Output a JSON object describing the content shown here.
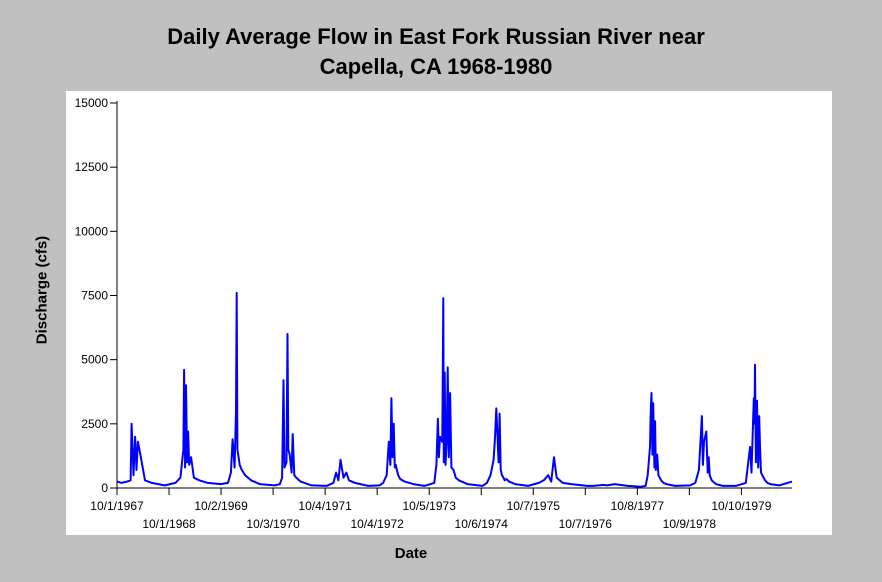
{
  "chart_data": {
    "type": "line",
    "title": [
      "Daily Average Flow in East Fork Russian River near",
      "Capella, CA 1968-1980"
    ],
    "xlabel": "Date",
    "ylabel": "Discharge (cfs)",
    "ylim": [
      0,
      15000
    ],
    "xlim": [
      "1967-10-01",
      "1980-09-30"
    ],
    "yticks": [
      0,
      2500,
      5000,
      7500,
      10000,
      12500,
      15000
    ],
    "ytick_labels": [
      "0",
      "2500",
      "5000",
      "7500",
      "10000",
      "12500",
      "15000"
    ],
    "xticks": [
      "1967-10-01",
      "1968-10-01",
      "1969-10-02",
      "1970-10-03",
      "1971-10-04",
      "1972-10-04",
      "1973-10-05",
      "1974-10-06",
      "1975-10-07",
      "1976-10-07",
      "1977-10-08",
      "1978-10-09",
      "1979-10-10"
    ],
    "xtick_labels": [
      "10/1/1967",
      "10/1/1968",
      "10/2/1969",
      "10/3/1970",
      "10/4/1971",
      "10/4/1972",
      "10/5/1973",
      "10/6/1974",
      "10/7/1975",
      "10/7/1976",
      "10/8/1977",
      "10/9/1978",
      "10/10/1979"
    ],
    "grid": false,
    "legend": "none",
    "line_color": "#0000ff",
    "series": [
      {
        "x": [
          "1967-10-01",
          "1967-11-01",
          "1967-12-10",
          "1968-01-05",
          "1968-01-12",
          "1968-01-25",
          "1968-02-05",
          "1968-02-15",
          "1968-02-25",
          "1968-03-10",
          "1968-04-15",
          "1968-06-01",
          "1968-09-01",
          "1968-11-15",
          "1968-12-20",
          "1969-01-10",
          "1969-01-15",
          "1969-01-22",
          "1969-01-28",
          "1969-02-05",
          "1969-02-12",
          "1969-02-20",
          "1969-03-05",
          "1969-03-25",
          "1969-05-01",
          "1969-07-01",
          "1969-09-30",
          "1969-11-20",
          "1969-12-10",
          "1969-12-22",
          "1970-01-05",
          "1970-01-15",
          "1970-01-20",
          "1970-01-25",
          "1970-02-02",
          "1970-02-10",
          "1970-02-25",
          "1970-03-20",
          "1970-05-01",
          "1970-07-01",
          "1970-10-15",
          "1970-11-20",
          "1970-12-05",
          "1970-12-15",
          "1970-12-22",
          "1971-01-05",
          "1971-01-12",
          "1971-01-18",
          "1971-01-28",
          "1971-02-10",
          "1971-02-18",
          "1971-03-01",
          "1971-03-15",
          "1971-04-15",
          "1971-07-01",
          "1971-10-15",
          "1971-12-01",
          "1971-12-20",
          "1972-01-05",
          "1972-01-20",
          "1972-02-10",
          "1972-03-01",
          "1972-03-20",
          "1972-05-01",
          "1972-08-01",
          "1972-10-20",
          "1972-11-15",
          "1972-12-10",
          "1972-12-25",
          "1973-01-05",
          "1973-01-12",
          "1973-01-20",
          "1973-01-28",
          "1973-02-05",
          "1973-02-12",
          "1973-02-20",
          "1973-03-01",
          "1973-03-15",
          "1973-04-15",
          "1973-06-15",
          "1973-09-01",
          "1973-11-10",
          "1973-11-25",
          "1973-12-05",
          "1973-12-12",
          "1973-12-20",
          "1974-01-05",
          "1974-01-12",
          "1974-01-16",
          "1974-01-22",
          "1974-01-28",
          "1974-02-05",
          "1974-02-12",
          "1974-02-20",
          "1974-03-01",
          "1974-03-10",
          "1974-03-25",
          "1974-04-10",
          "1974-05-01",
          "1974-07-01",
          "1974-10-15",
          "1974-11-15",
          "1974-12-10",
          "1975-01-01",
          "1975-01-10",
          "1975-01-20",
          "1975-02-05",
          "1975-02-12",
          "1975-02-20",
          "1975-03-01",
          "1975-03-12",
          "1975-03-20",
          "1975-04-01",
          "1975-04-20",
          "1975-06-01",
          "1975-09-01",
          "1975-11-15",
          "1975-12-20",
          "1976-01-20",
          "1976-02-10",
          "1976-03-01",
          "1976-03-20",
          "1976-04-10",
          "1976-05-01",
          "1976-07-01",
          "1976-10-20",
          "1976-12-01",
          "1977-01-10",
          "1977-02-10",
          "1977-03-10",
          "1977-05-01",
          "1977-08-01",
          "1977-11-01",
          "1977-12-05",
          "1977-12-20",
          "1978-01-05",
          "1978-01-10",
          "1978-01-16",
          "1978-01-22",
          "1978-01-28",
          "1978-02-05",
          "1978-02-10",
          "1978-02-15",
          "1978-02-25",
          "1978-03-05",
          "1978-03-15",
          "1978-03-25",
          "1978-04-10",
          "1978-05-01",
          "1978-07-01",
          "1978-10-15",
          "1978-11-20",
          "1978-12-15",
          "1979-01-05",
          "1979-01-12",
          "1979-01-20",
          "1979-02-05",
          "1979-02-15",
          "1979-02-22",
          "1979-03-01",
          "1979-03-15",
          "1979-03-25",
          "1979-04-15",
          "1979-06-01",
          "1979-09-01",
          "1979-11-10",
          "1979-12-10",
          "1979-12-20",
          "1980-01-05",
          "1980-01-10",
          "1980-01-14",
          "1980-01-20",
          "1980-01-28",
          "1980-02-05",
          "1980-02-12",
          "1980-02-18",
          "1980-02-25",
          "1980-03-05",
          "1980-03-15",
          "1980-03-25",
          "1980-04-10",
          "1980-05-01",
          "1980-07-01",
          "1980-09-30"
        ],
        "y": [
          250,
          200,
          250,
          300,
          2500,
          500,
          2000,
          700,
          1800,
          1400,
          300,
          200,
          100,
          200,
          400,
          1500,
          4600,
          800,
          4000,
          1000,
          2200,
          900,
          1200,
          400,
          300,
          200,
          150,
          200,
          600,
          1900,
          800,
          3000,
          7600,
          1500,
          1200,
          900,
          700,
          500,
          300,
          150,
          100,
          150,
          400,
          4200,
          800,
          1000,
          6000,
          1500,
          1300,
          600,
          2100,
          500,
          400,
          250,
          100,
          80,
          200,
          600,
          300,
          1100,
          400,
          600,
          300,
          200,
          80,
          100,
          200,
          500,
          1800,
          900,
          3500,
          1200,
          2500,
          800,
          900,
          700,
          500,
          350,
          250,
          150,
          80,
          200,
          900,
          2700,
          1200,
          2000,
          1800,
          7400,
          1000,
          4500,
          900,
          1800,
          4700,
          1200,
          3700,
          800,
          700,
          400,
          300,
          150,
          80,
          200,
          500,
          1100,
          1900,
          3100,
          1000,
          2900,
          700,
          500,
          400,
          300,
          350,
          250,
          150,
          80,
          200,
          300,
          500,
          250,
          1200,
          400,
          300,
          200,
          150,
          80,
          80,
          100,
          120,
          100,
          150,
          80,
          50,
          80,
          500,
          1600,
          2900,
          3700,
          1300,
          3300,
          800,
          2600,
          700,
          1300,
          500,
          400,
          300,
          200,
          150,
          80,
          100,
          200,
          700,
          2800,
          900,
          1800,
          2200,
          600,
          1200,
          500,
          300,
          250,
          150,
          80,
          80,
          200,
          1600,
          600,
          3500,
          2500,
          4800,
          1000,
          3400,
          800,
          2800,
          1600,
          600,
          500,
          400,
          300,
          200,
          150,
          100,
          250
        ]
      }
    ]
  }
}
